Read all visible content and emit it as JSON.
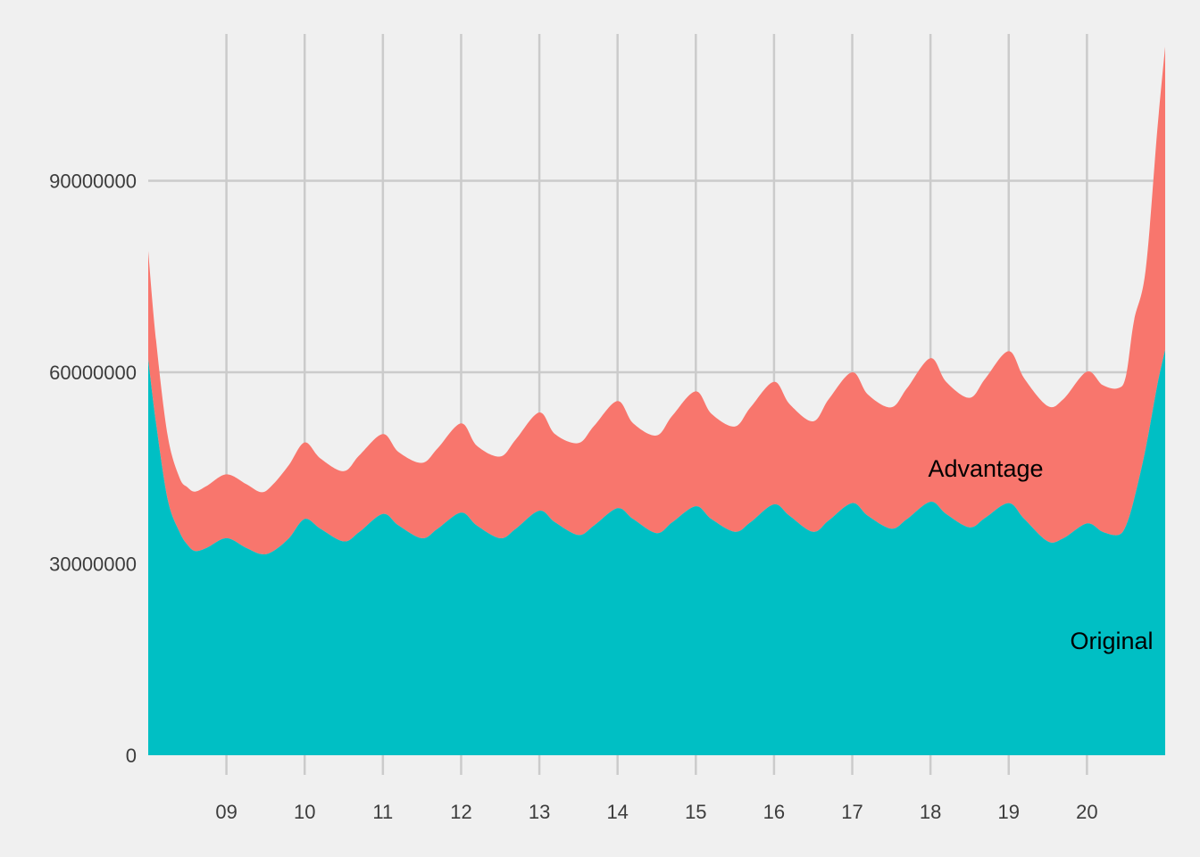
{
  "chart_data": {
    "type": "area",
    "stacked": true,
    "title": "",
    "xlabel": "",
    "ylabel": "",
    "x_ticks": [
      "09",
      "10",
      "11",
      "12",
      "13",
      "14",
      "15",
      "16",
      "17",
      "18",
      "19",
      "20"
    ],
    "x_range": [
      8,
      21
    ],
    "y_ticks": [
      "0",
      "30000000",
      "60000000",
      "90000000"
    ],
    "ylim": [
      0,
      113000000
    ],
    "grid": true,
    "legend": "none (series labels placed inside areas)",
    "x": [
      8.0,
      8.1,
      8.25,
      8.4,
      8.5,
      8.6,
      8.75,
      9.0,
      9.25,
      9.45,
      9.6,
      9.8,
      10.0,
      10.2,
      10.5,
      10.7,
      11.0,
      11.2,
      11.5,
      11.7,
      12.0,
      12.2,
      12.5,
      12.7,
      13.0,
      13.2,
      13.5,
      13.7,
      14.0,
      14.2,
      14.5,
      14.7,
      15.0,
      15.2,
      15.5,
      15.7,
      16.0,
      16.2,
      16.5,
      16.7,
      17.0,
      17.2,
      17.5,
      17.7,
      18.0,
      18.2,
      18.5,
      18.7,
      19.0,
      19.2,
      19.5,
      19.7,
      20.0,
      20.2,
      20.4,
      20.5,
      20.6,
      20.75,
      20.9,
      21.0
    ],
    "series": [
      {
        "name": "Original",
        "color": "#00bfc4",
        "values": [
          62000000,
          52000000,
          40000000,
          35000000,
          33000000,
          32000000,
          32500000,
          34000000,
          32500000,
          31500000,
          32000000,
          34000000,
          37000000,
          35500000,
          33500000,
          35000000,
          37800000,
          36000000,
          34000000,
          35500000,
          38000000,
          36000000,
          34000000,
          35500000,
          38300000,
          36500000,
          34500000,
          36000000,
          38700000,
          37000000,
          34800000,
          36500000,
          39000000,
          37000000,
          35000000,
          36500000,
          39300000,
          37500000,
          35000000,
          36800000,
          39500000,
          37500000,
          35500000,
          37000000,
          39700000,
          37800000,
          35700000,
          37200000,
          39500000,
          37000000,
          33500000,
          34000000,
          36300000,
          35000000,
          34500000,
          36000000,
          40000000,
          48000000,
          58000000,
          63500000
        ]
      },
      {
        "name": "Advantage",
        "color": "#f8766d",
        "values": [
          17000000,
          13000000,
          10000000,
          8500000,
          9000000,
          9300000,
          9700000,
          10000000,
          10000000,
          9700000,
          10500000,
          11500000,
          12000000,
          11000000,
          11000000,
          12000000,
          12500000,
          11500000,
          11800000,
          12600000,
          14000000,
          12500000,
          12800000,
          14000000,
          15400000,
          13800000,
          14400000,
          15600000,
          16800000,
          15000000,
          15300000,
          16700000,
          18000000,
          16500000,
          16500000,
          18000000,
          19200000,
          17500000,
          17300000,
          19000000,
          20500000,
          19000000,
          19000000,
          20500000,
          22500000,
          20700000,
          20300000,
          21800000,
          23800000,
          22000000,
          21200000,
          21800000,
          23800000,
          23000000,
          23000000,
          23500000,
          28000000,
          28000000,
          40000000,
          47500000
        ]
      }
    ]
  }
}
